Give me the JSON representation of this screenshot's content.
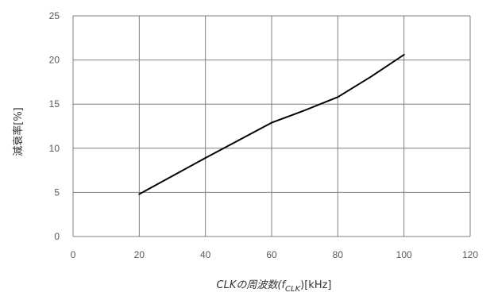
{
  "chart_data": {
    "type": "line",
    "title": "",
    "xlabel_main": "CLKの周波数(",
    "xlabel_symbol": "f",
    "xlabel_subscript": "CLK",
    "xlabel_tail": ")[kHz]",
    "ylabel": "減衰率[%]",
    "xlim": [
      0,
      120
    ],
    "ylim": [
      0,
      25
    ],
    "xticks": [
      0,
      20,
      40,
      60,
      80,
      100,
      120
    ],
    "yticks": [
      0,
      5,
      10,
      15,
      20,
      25
    ],
    "grid": true,
    "legend": "none",
    "series": [
      {
        "color": "#000000",
        "x": [
          20,
          40,
          60,
          70,
          80,
          90,
          100
        ],
        "y": [
          4.8,
          8.9,
          12.9,
          14.3,
          15.8,
          18.1,
          20.6
        ]
      }
    ]
  }
}
